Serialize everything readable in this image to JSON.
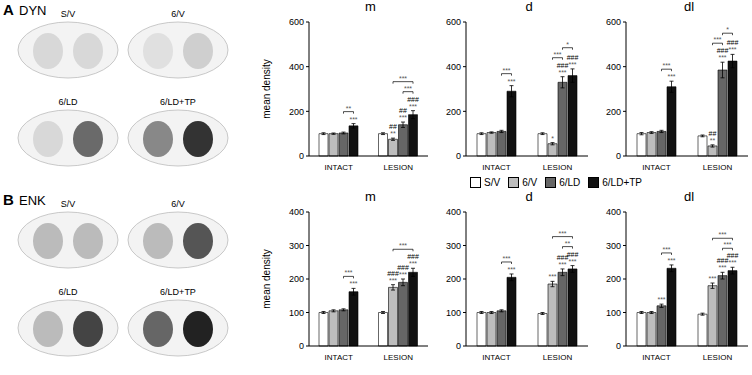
{
  "panels": [
    {
      "label": "A",
      "title": "DYN",
      "image_labels": [
        "S/V",
        "6/V",
        "6/LD",
        "6/LD+TP"
      ]
    },
    {
      "label": "B",
      "title": "ENK",
      "image_labels": [
        "S/V",
        "6/V",
        "6/LD",
        "6/LD+TP"
      ]
    }
  ],
  "chart_data": [
    {
      "type": "bar",
      "title": "m",
      "ylabel": "mean density",
      "categories": [
        "INTACT",
        "LESION"
      ],
      "ylim": [
        0,
        600
      ],
      "yticks": [
        0,
        200,
        400,
        600
      ],
      "series": [
        {
          "name": "S/V",
          "color": "#ffffff",
          "values": [
            100,
            100
          ],
          "errors": [
            4,
            4
          ],
          "marks": [
            null,
            null
          ]
        },
        {
          "name": "6/V",
          "color": "#bdbdbd",
          "values": [
            100,
            75
          ],
          "errors": [
            3,
            5
          ],
          "marks": [
            null,
            "##\n**"
          ]
        },
        {
          "name": "6/LD",
          "color": "#666666",
          "values": [
            103,
            140
          ],
          "errors": [
            4,
            12
          ],
          "marks": [
            null,
            "##\n***"
          ]
        },
        {
          "name": "6/LD+TP",
          "color": "#111111",
          "values": [
            135,
            185
          ],
          "errors": [
            10,
            18
          ],
          "marks": [
            "***",
            "###\n***"
          ]
        }
      ],
      "brackets": [
        {
          "category": "INTACT",
          "from": "6/LD",
          "to": "6/LD+TP",
          "label": "**"
        },
        {
          "category": "LESION",
          "from": "6/LD",
          "to": "6/LD+TP",
          "label": "***"
        },
        {
          "category": "LESION",
          "from": "6/V",
          "to": "6/LD+TP",
          "label": "***"
        }
      ]
    },
    {
      "type": "bar",
      "title": "d",
      "categories": [
        "INTACT",
        "LESION"
      ],
      "ylim": [
        0,
        600
      ],
      "yticks": [
        0,
        200,
        400,
        600
      ],
      "series": [
        {
          "name": "S/V",
          "color": "#ffffff",
          "values": [
            100,
            100
          ],
          "errors": [
            4,
            4
          ],
          "marks": [
            null,
            null
          ]
        },
        {
          "name": "6/V",
          "color": "#bdbdbd",
          "values": [
            105,
            55
          ],
          "errors": [
            3,
            5
          ],
          "marks": [
            null,
            "*"
          ]
        },
        {
          "name": "6/LD",
          "color": "#666666",
          "values": [
            110,
            330
          ],
          "errors": [
            5,
            25
          ],
          "marks": [
            null,
            "###\n***"
          ]
        },
        {
          "name": "6/LD+TP",
          "color": "#111111",
          "values": [
            290,
            360
          ],
          "errors": [
            25,
            30
          ],
          "marks": [
            "***",
            "###\n***"
          ]
        }
      ],
      "brackets": [
        {
          "category": "INTACT",
          "from": "6/LD",
          "to": "6/LD+TP",
          "label": "***"
        },
        {
          "category": "LESION",
          "from": "6/V",
          "to": "6/LD",
          "label": "***"
        },
        {
          "category": "LESION",
          "from": "6/LD",
          "to": "6/LD+TP",
          "label": "*"
        }
      ]
    },
    {
      "type": "bar",
      "title": "dl",
      "categories": [
        "INTACT",
        "LESION"
      ],
      "ylim": [
        0,
        600
      ],
      "yticks": [
        0,
        200,
        400,
        600
      ],
      "series": [
        {
          "name": "S/V",
          "color": "#ffffff",
          "values": [
            100,
            90
          ],
          "errors": [
            5,
            4
          ],
          "marks": [
            null,
            null
          ]
        },
        {
          "name": "6/V",
          "color": "#bdbdbd",
          "values": [
            105,
            45
          ],
          "errors": [
            4,
            5
          ],
          "marks": [
            null,
            "##\n**"
          ]
        },
        {
          "name": "6/LD",
          "color": "#666666",
          "values": [
            110,
            385
          ],
          "errors": [
            5,
            35
          ],
          "marks": [
            null,
            "###\n***"
          ]
        },
        {
          "name": "6/LD+TP",
          "color": "#111111",
          "values": [
            310,
            425
          ],
          "errors": [
            25,
            30
          ],
          "marks": [
            "***",
            "###\n***"
          ]
        }
      ],
      "brackets": [
        {
          "category": "INTACT",
          "from": "6/LD",
          "to": "6/LD+TP",
          "label": "***"
        },
        {
          "category": "LESION",
          "from": "6/V",
          "to": "6/LD",
          "label": "***"
        },
        {
          "category": "LESION",
          "from": "6/LD",
          "to": "6/LD+TP",
          "label": "*"
        }
      ]
    },
    {
      "type": "bar",
      "title": "m",
      "ylabel": "mean density",
      "categories": [
        "INTACT",
        "LESION"
      ],
      "ylim": [
        0,
        400
      ],
      "yticks": [
        0,
        100,
        200,
        300,
        400
      ],
      "series": [
        {
          "name": "S/V",
          "color": "#ffffff",
          "values": [
            100,
            100
          ],
          "errors": [
            3,
            3
          ],
          "marks": [
            null,
            null
          ]
        },
        {
          "name": "6/V",
          "color": "#bdbdbd",
          "values": [
            105,
            175
          ],
          "errors": [
            3,
            8
          ],
          "marks": [
            null,
            "###\n***"
          ]
        },
        {
          "name": "6/LD",
          "color": "#666666",
          "values": [
            108,
            190
          ],
          "errors": [
            3,
            10
          ],
          "marks": [
            null,
            "###\n***"
          ]
        },
        {
          "name": "6/LD+TP",
          "color": "#111111",
          "values": [
            162,
            220
          ],
          "errors": [
            10,
            12
          ],
          "marks": [
            "***",
            "###\n***"
          ]
        }
      ],
      "brackets": [
        {
          "category": "INTACT",
          "from": "6/LD",
          "to": "6/LD+TP",
          "label": "***"
        },
        {
          "category": "LESION",
          "from": "6/V",
          "to": "6/LD+TP",
          "label": "***"
        }
      ]
    },
    {
      "type": "bar",
      "title": "d",
      "categories": [
        "INTACT",
        "LESION"
      ],
      "ylim": [
        0,
        400
      ],
      "yticks": [
        0,
        100,
        200,
        300,
        400
      ],
      "series": [
        {
          "name": "S/V",
          "color": "#ffffff",
          "values": [
            100,
            97
          ],
          "errors": [
            3,
            3
          ],
          "marks": [
            null,
            null
          ]
        },
        {
          "name": "6/V",
          "color": "#bdbdbd",
          "values": [
            100,
            185
          ],
          "errors": [
            3,
            8
          ],
          "marks": [
            null,
            "***"
          ]
        },
        {
          "name": "6/LD",
          "color": "#666666",
          "values": [
            105,
            220
          ],
          "errors": [
            3,
            10
          ],
          "marks": [
            null,
            "###\n***"
          ]
        },
        {
          "name": "6/LD+TP",
          "color": "#111111",
          "values": [
            205,
            230
          ],
          "errors": [
            10,
            10
          ],
          "marks": [
            "***",
            "###\n***"
          ]
        }
      ],
      "brackets": [
        {
          "category": "INTACT",
          "from": "6/LD",
          "to": "6/LD+TP",
          "label": "***"
        },
        {
          "category": "LESION",
          "from": "6/LD",
          "to": "6/LD+TP",
          "label": "**"
        },
        {
          "category": "LESION",
          "from": "6/V",
          "to": "6/LD+TP",
          "label": "***"
        }
      ]
    },
    {
      "type": "bar",
      "title": "dl",
      "categories": [
        "INTACT",
        "LESION"
      ],
      "ylim": [
        0,
        400
      ],
      "yticks": [
        0,
        100,
        200,
        300,
        400
      ],
      "series": [
        {
          "name": "S/V",
          "color": "#ffffff",
          "values": [
            100,
            95
          ],
          "errors": [
            3,
            3
          ],
          "marks": [
            null,
            null
          ]
        },
        {
          "name": "6/V",
          "color": "#bdbdbd",
          "values": [
            100,
            180
          ],
          "errors": [
            3,
            8
          ],
          "marks": [
            null,
            "***"
          ]
        },
        {
          "name": "6/LD",
          "color": "#666666",
          "values": [
            120,
            210
          ],
          "errors": [
            5,
            10
          ],
          "marks": [
            "***",
            "###\n***"
          ]
        },
        {
          "name": "6/LD+TP",
          "color": "#111111",
          "values": [
            232,
            225
          ],
          "errors": [
            10,
            10
          ],
          "marks": [
            "***",
            "###\n***"
          ]
        }
      ],
      "brackets": [
        {
          "category": "INTACT",
          "from": "6/LD",
          "to": "6/LD+TP",
          "label": "***"
        },
        {
          "category": "LESION",
          "from": "6/LD",
          "to": "6/LD+TP",
          "label": "***"
        },
        {
          "category": "LESION",
          "from": "6/V",
          "to": "6/LD+TP",
          "label": "***"
        }
      ]
    }
  ]
}
